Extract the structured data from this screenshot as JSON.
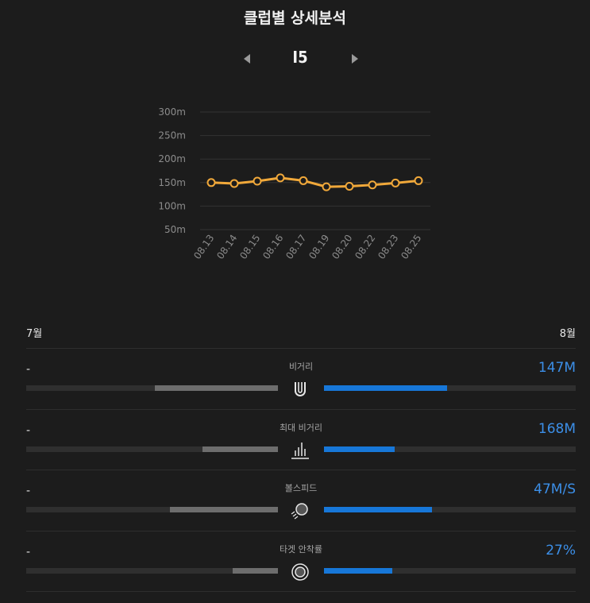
{
  "page": {
    "title": "클럽별 상세분석"
  },
  "club": {
    "name": "I5",
    "prev_icon": "caret-left-icon",
    "next_icon": "caret-right-icon"
  },
  "chart_data": {
    "type": "line",
    "x": [
      "08.13",
      "08.14",
      "08.15",
      "08.16",
      "08.17",
      "08.19",
      "08.20",
      "08.22",
      "08.23",
      "08.25"
    ],
    "y_tick_labels": [
      "300m",
      "250m",
      "200m",
      "150m",
      "100m",
      "50m"
    ],
    "y_ticks": [
      300,
      250,
      200,
      150,
      100,
      50
    ],
    "ylim": [
      50,
      300
    ],
    "series": [
      {
        "values": [
          150,
          148,
          153,
          160,
          154,
          141,
          142,
          145,
          149,
          154
        ]
      }
    ],
    "line_color": "#f0a83a",
    "grid": true,
    "title": "",
    "xlabel": "",
    "ylabel": ""
  },
  "months": {
    "previous": "7월",
    "current": "8월"
  },
  "stats": [
    {
      "label": "비거리",
      "prev": "-",
      "value": "147M",
      "prev_fraction": 0.49,
      "curr_fraction": 0.49,
      "icon": "magnet-icon"
    },
    {
      "label": "최대 비거리",
      "prev": "-",
      "value": "168M",
      "prev_fraction": 0.3,
      "curr_fraction": 0.28,
      "icon": "bar-chart-icon"
    },
    {
      "label": "볼스피드",
      "prev": "-",
      "value": "47M/S",
      "prev_fraction": 0.43,
      "curr_fraction": 0.43,
      "icon": "ball-speed-icon"
    },
    {
      "label": "타겟 안착률",
      "prev": "-",
      "value": "27%",
      "prev_fraction": 0.18,
      "curr_fraction": 0.27,
      "icon": "target-icon"
    }
  ],
  "colors": {
    "background": "#1c1c1c",
    "accent_blue": "#1777d8",
    "value_blue": "#3c8fe8",
    "line_orange": "#f0a83a",
    "prev_bar_gray": "#6d6d6d"
  }
}
